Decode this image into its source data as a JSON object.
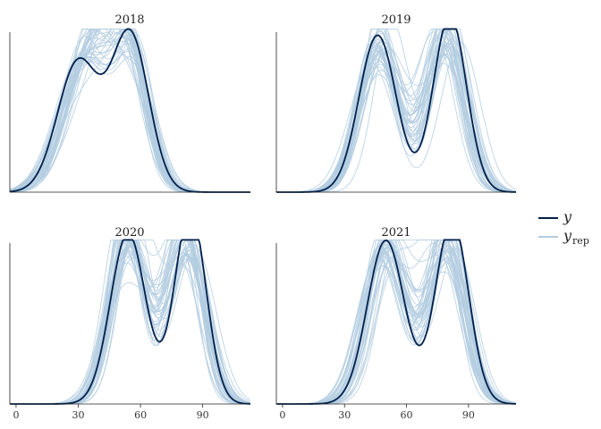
{
  "chart_data": {
    "type": "line",
    "description": "Posterior predictive density overlay, faceted by year",
    "x_ticks": [
      "0",
      "30",
      "60",
      "90"
    ],
    "xlim": [
      -3,
      113
    ],
    "grid": false,
    "legend_position": "right",
    "legend": {
      "y_label": "y",
      "yrep_label": "y",
      "yrep_sub": "rep"
    },
    "colors": {
      "y": "#011f4b",
      "yrep": "#b3cde0"
    },
    "replicates": 40,
    "panels": [
      {
        "title": "2018",
        "ymax": 0.0235,
        "y_components": [
          {
            "weight": 0.48,
            "mean": 30,
            "sd": 10
          },
          {
            "weight": 0.52,
            "mean": 55,
            "sd": 9
          }
        ],
        "yrep_components": [
          {
            "weight": 0.6,
            "mean": 35,
            "sd": 12
          },
          {
            "weight": 0.4,
            "mean": 55,
            "sd": 9
          }
        ]
      },
      {
        "title": "2019",
        "ymax": 0.0226,
        "y_components": [
          {
            "weight": 0.5,
            "mean": 46,
            "sd": 9
          },
          {
            "weight": 0.5,
            "mean": 81,
            "sd": 8
          }
        ],
        "yrep_components": [
          {
            "weight": 0.5,
            "mean": 47,
            "sd": 9.5
          },
          {
            "weight": 0.5,
            "mean": 79,
            "sd": 9
          }
        ]
      },
      {
        "title": "2020",
        "ymax": 0.0221,
        "y_components": [
          {
            "weight": 0.5,
            "mean": 54,
            "sd": 8.5
          },
          {
            "weight": 0.5,
            "mean": 84,
            "sd": 7.5
          }
        ],
        "yrep_components": [
          {
            "weight": 0.5,
            "mean": 54,
            "sd": 9
          },
          {
            "weight": 0.5,
            "mean": 82,
            "sd": 9
          }
        ]
      },
      {
        "title": "2021",
        "ymax": 0.0218,
        "y_components": [
          {
            "weight": 0.5,
            "mean": 50,
            "sd": 9
          },
          {
            "weight": 0.5,
            "mean": 82,
            "sd": 8
          }
        ],
        "yrep_components": [
          {
            "weight": 0.5,
            "mean": 50,
            "sd": 9.5
          },
          {
            "weight": 0.5,
            "mean": 80,
            "sd": 9
          }
        ]
      }
    ]
  }
}
